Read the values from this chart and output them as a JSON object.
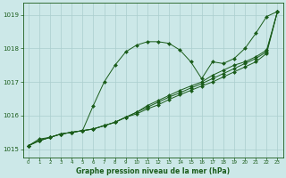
{
  "x": [
    0,
    1,
    2,
    3,
    4,
    5,
    6,
    7,
    8,
    9,
    10,
    11,
    12,
    13,
    14,
    15,
    16,
    17,
    18,
    19,
    20,
    21,
    22,
    23
  ],
  "lines": [
    [
      1015.1,
      1015.3,
      1015.35,
      1015.45,
      1015.5,
      1015.55,
      1016.3,
      1017.0,
      1017.5,
      1017.9,
      1018.1,
      1018.2,
      1018.2,
      1018.15,
      1017.95,
      1017.6,
      1017.1,
      1017.6,
      1017.55,
      1017.7,
      1018.0,
      1018.45,
      1018.95,
      1019.1
    ],
    [
      1015.1,
      1015.25,
      1015.35,
      1015.45,
      1015.5,
      1015.55,
      1015.6,
      1015.7,
      1015.8,
      1015.95,
      1016.1,
      1016.3,
      1016.45,
      1016.6,
      1016.75,
      1016.88,
      1017.0,
      1017.2,
      1017.35,
      1017.5,
      1017.6,
      1017.75,
      1017.95,
      1019.1
    ],
    [
      1015.1,
      1015.25,
      1015.35,
      1015.45,
      1015.5,
      1015.55,
      1015.6,
      1015.7,
      1015.8,
      1015.95,
      1016.1,
      1016.25,
      1016.4,
      1016.55,
      1016.68,
      1016.82,
      1016.95,
      1017.1,
      1017.25,
      1017.4,
      1017.55,
      1017.7,
      1017.9,
      1019.1
    ],
    [
      1015.1,
      1015.25,
      1015.35,
      1015.45,
      1015.5,
      1015.55,
      1015.6,
      1015.7,
      1015.8,
      1015.95,
      1016.05,
      1016.2,
      1016.32,
      1016.48,
      1016.62,
      1016.75,
      1016.88,
      1017.0,
      1017.15,
      1017.3,
      1017.45,
      1017.6,
      1017.85,
      1019.1
    ]
  ],
  "line_color": "#1a5c1a",
  "marker": "D",
  "markersize": 2.0,
  "title": "Graphe pression niveau de la mer (hPa)",
  "xlim": [
    -0.5,
    23.5
  ],
  "ylim": [
    1014.75,
    1019.35
  ],
  "yticks": [
    1015,
    1016,
    1017,
    1018,
    1019
  ],
  "xticks": [
    0,
    1,
    2,
    3,
    4,
    5,
    6,
    7,
    8,
    9,
    10,
    11,
    12,
    13,
    14,
    15,
    16,
    17,
    18,
    19,
    20,
    21,
    22,
    23
  ],
  "bg_color": "#cce8e8",
  "grid_color": "#aacece",
  "text_color": "#1a5c1a",
  "tick_color": "#1a5c1a"
}
